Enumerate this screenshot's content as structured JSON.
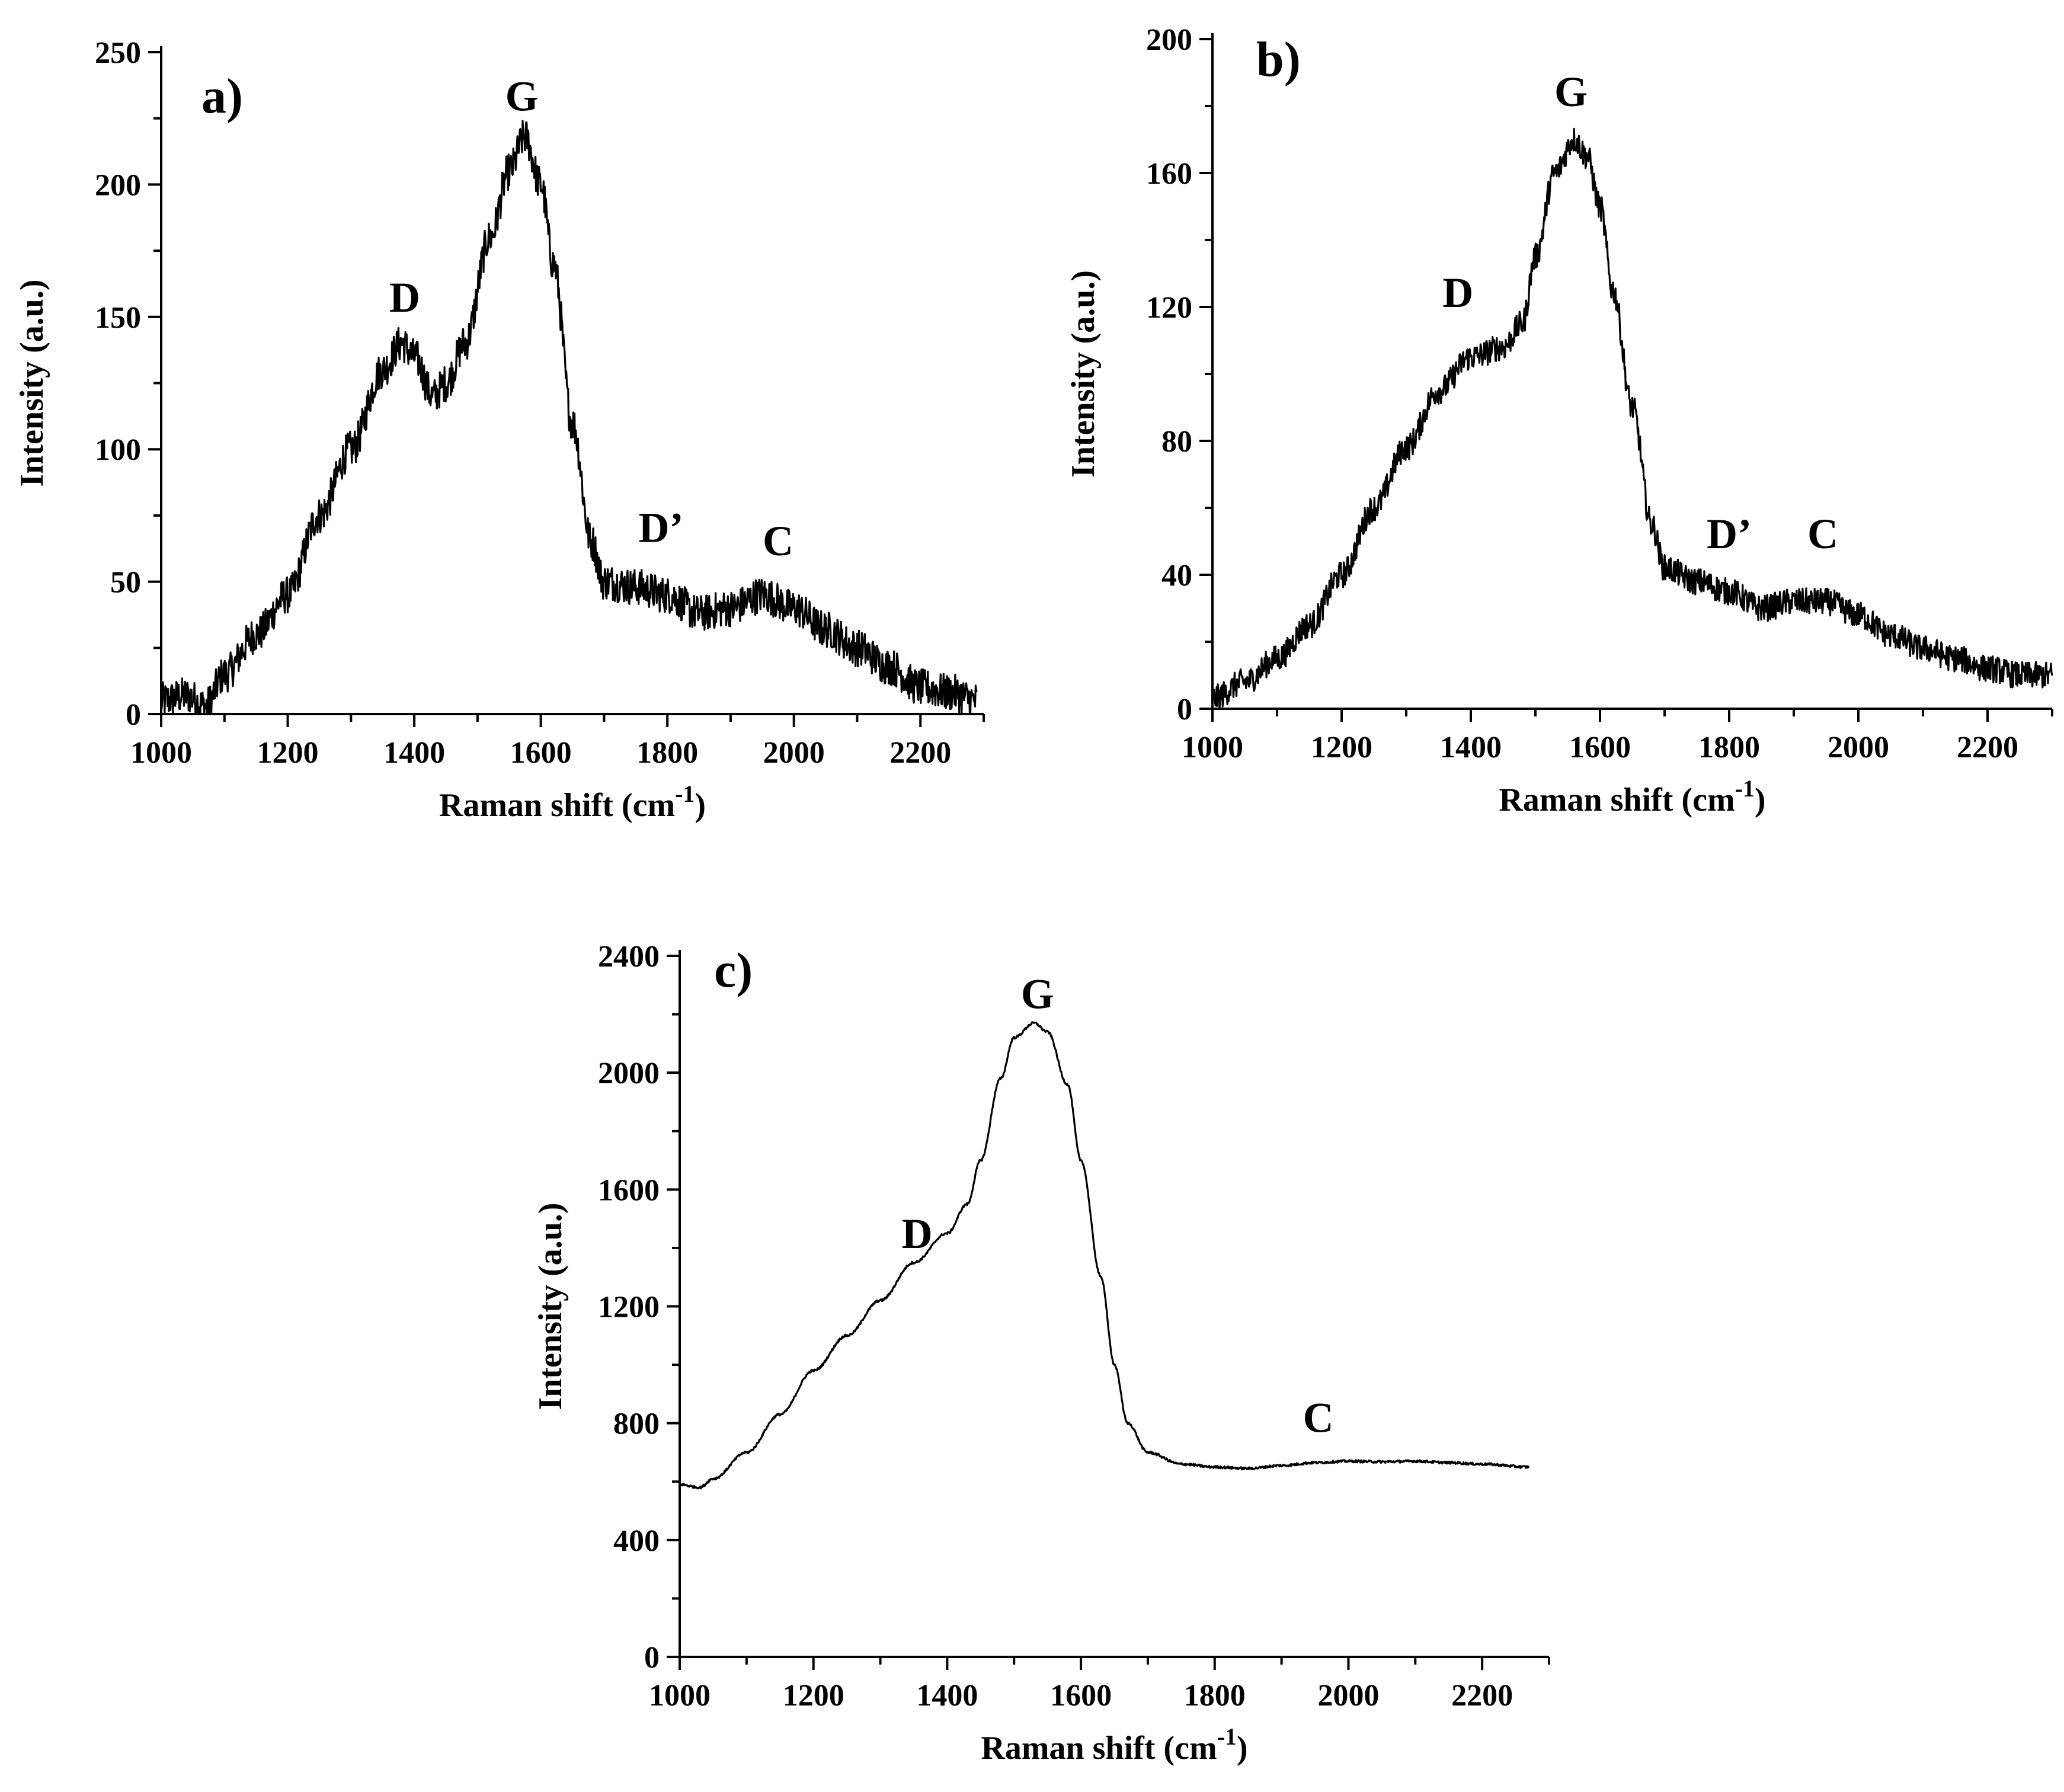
{
  "figure": {
    "description_free": true
  },
  "chart_data": [
    {
      "type": "line",
      "panel_label": "a)",
      "xlabel": "Raman shift (cm",
      "xlabel_sup": "-1",
      "xlabel_close": ")",
      "ylabel": "Intensity (a.u.)",
      "xlim": [
        1000,
        2300
      ],
      "ylim": [
        0,
        250
      ],
      "xticks": [
        1000,
        1200,
        1400,
        1600,
        1800,
        2000,
        2200
      ],
      "yticks": [
        0,
        50,
        100,
        150,
        200,
        250
      ],
      "noise": 7,
      "series": [
        {
          "name": "a",
          "x": [
            1000,
            1040,
            1070,
            1100,
            1150,
            1200,
            1250,
            1300,
            1350,
            1380,
            1400,
            1430,
            1450,
            1480,
            1520,
            1550,
            1575,
            1600,
            1620,
            1650,
            1680,
            1700,
            1750,
            1800,
            1850,
            1900,
            1950,
            2000,
            2050,
            2100,
            2150,
            2200,
            2250,
            2290
          ],
          "y": [
            5,
            7,
            3,
            15,
            30,
            45,
            75,
            100,
            130,
            140,
            135,
            120,
            125,
            140,
            180,
            205,
            218,
            200,
            170,
            110,
            65,
            50,
            48,
            45,
            38,
            40,
            45,
            40,
            32,
            25,
            18,
            10,
            8,
            5
          ]
        }
      ],
      "annotations": [
        {
          "text": "D",
          "x": 1385,
          "y": 152
        },
        {
          "text": "G",
          "x": 1570,
          "y": 228
        },
        {
          "text": "D’",
          "x": 1790,
          "y": 65
        },
        {
          "text": "C",
          "x": 1975,
          "y": 60
        }
      ]
    },
    {
      "type": "line",
      "panel_label": "b)",
      "xlabel": "Raman shift (cm",
      "xlabel_sup": "-1",
      "xlabel_close": ")",
      "ylabel": "Intensity (a.u.)",
      "xlim": [
        1000,
        2300
      ],
      "ylim": [
        0,
        200
      ],
      "xticks": [
        1000,
        1200,
        1400,
        1600,
        1800,
        2000,
        2200
      ],
      "yticks": [
        0,
        40,
        80,
        120,
        160,
        200
      ],
      "noise": 4,
      "series": [
        {
          "name": "b",
          "x": [
            1000,
            1050,
            1100,
            1150,
            1200,
            1250,
            1300,
            1350,
            1400,
            1450,
            1480,
            1500,
            1530,
            1560,
            1580,
            1600,
            1620,
            1650,
            1680,
            1700,
            1750,
            1800,
            1850,
            1900,
            1950,
            2000,
            2050,
            2100,
            2150,
            2200,
            2250,
            2300
          ],
          "y": [
            3,
            8,
            15,
            25,
            40,
            60,
            78,
            95,
            105,
            108,
            115,
            135,
            160,
            170,
            165,
            150,
            125,
            90,
            55,
            42,
            38,
            35,
            30,
            32,
            32,
            28,
            22,
            18,
            15,
            12,
            10,
            10
          ]
        }
      ],
      "annotations": [
        {
          "text": "D",
          "x": 1380,
          "y": 120
        },
        {
          "text": "G",
          "x": 1555,
          "y": 180
        },
        {
          "text": "D’",
          "x": 1800,
          "y": 48
        },
        {
          "text": "C",
          "x": 1945,
          "y": 48
        }
      ]
    },
    {
      "type": "line",
      "panel_label": "c)",
      "xlabel": "Raman shift (cm",
      "xlabel_sup": "-1",
      "xlabel_close": ")",
      "ylabel": "Intensity (a.u.)",
      "xlim": [
        1000,
        2300
      ],
      "ylim": [
        0,
        2400
      ],
      "xticks": [
        1000,
        1200,
        1400,
        1600,
        1800,
        2000,
        2200
      ],
      "yticks": [
        0,
        400,
        800,
        1200,
        1600,
        2000,
        2400
      ],
      "noise": 4,
      "series": [
        {
          "name": "c",
          "x": [
            1000,
            1030,
            1050,
            1100,
            1150,
            1200,
            1250,
            1300,
            1350,
            1400,
            1430,
            1450,
            1480,
            1500,
            1530,
            1550,
            1580,
            1600,
            1630,
            1650,
            1670,
            1700,
            1750,
            1800,
            1850,
            1900,
            1950,
            2000,
            2050,
            2100,
            2150,
            2200,
            2270
          ],
          "y": [
            590,
            580,
            610,
            700,
            830,
            980,
            1100,
            1220,
            1350,
            1450,
            1550,
            1700,
            1980,
            2120,
            2170,
            2140,
            1960,
            1700,
            1300,
            1000,
            800,
            700,
            660,
            650,
            645,
            655,
            665,
            670,
            668,
            670,
            665,
            660,
            650
          ]
        }
      ],
      "annotations": [
        {
          "text": "D",
          "x": 1355,
          "y": 1400
        },
        {
          "text": "G",
          "x": 1535,
          "y": 2220
        },
        {
          "text": "C",
          "x": 1955,
          "y": 770
        }
      ]
    }
  ]
}
